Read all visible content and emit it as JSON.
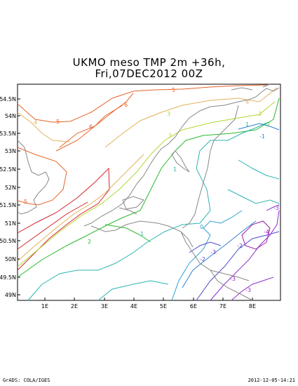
{
  "title": {
    "line1": "UKMO meso TMP 2m +36h,",
    "line2": "Fri,07DEC2012 00Z"
  },
  "axes": {
    "lat_ticks": [
      "54.5N",
      "54N",
      "53.5N",
      "53N",
      "52.5N",
      "52N",
      "51.5N",
      "51N",
      "50.5N",
      "50N",
      "49.5N",
      "49N"
    ],
    "lon_ticks": [
      "1E",
      "2E",
      "3E",
      "4E",
      "5E",
      "6E",
      "7E",
      "8E"
    ]
  },
  "contour_labels": {
    "c6": "6",
    "c5a": "5",
    "c5b": "5",
    "c5c": "5",
    "c4a": "4",
    "c4b": "4",
    "c3a": "3",
    "c3b": "3",
    "c2a": "2",
    "c2b": "2",
    "c1a": "1",
    "c1b": "1",
    "c1c": "1",
    "c0": "0",
    "cm1": "-1",
    "cm2": "-2",
    "cm3a": "-3",
    "cm3b": "-3",
    "cm3c": "-3",
    "cm4": "-4",
    "c6b": "6",
    "cm3d": "-3",
    "cm2b": "-2"
  },
  "footer": {
    "left": "GrADS: COLA/IGES",
    "right": "2012-12-05-14:21"
  },
  "colors": {
    "c6": "#d2242a",
    "c5": "#e6642b",
    "c4": "#e0b25a",
    "c3": "#b0d830",
    "c2": "#2cb82c",
    "c1": "#2cb6b0",
    "c0": "#30a0d0",
    "cm1": "#3080d0",
    "cm2": "#4a4ad0",
    "cm3": "#8a30c8",
    "cm4": "#9a1aa8",
    "coast": "#888888"
  }
}
